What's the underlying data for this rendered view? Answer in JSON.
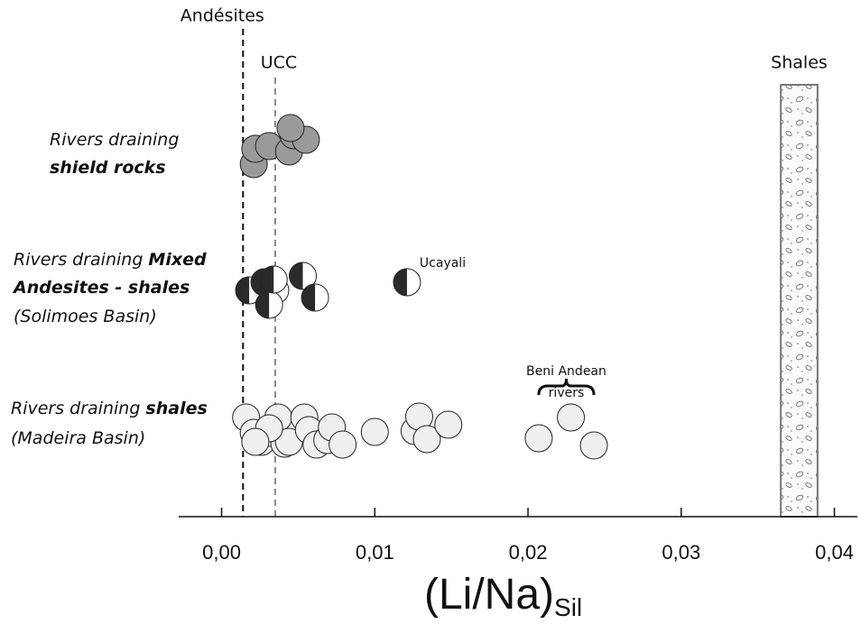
{
  "chart_data": {
    "type": "scatter",
    "xlabel": "(Li/Na)",
    "xlabel_sub": "Sil",
    "xlim": [
      -0.0028,
      0.0415
    ],
    "xticks": [
      {
        "value": 0,
        "label": "0,00"
      },
      {
        "value": 0.01,
        "label": "0,01"
      },
      {
        "value": 0.02,
        "label": "0,02"
      },
      {
        "value": 0.03,
        "label": "0,03"
      },
      {
        "value": 0.04,
        "label": "0,04"
      }
    ],
    "series": [
      {
        "label_lines": [
          [
            {
              "text": "Rivers draining",
              "bold": false
            }
          ],
          [
            {
              "text": "shield  rocks",
              "bold": true
            }
          ]
        ],
        "marker": "filled",
        "color": "#9a9a9a",
        "x": [
          0.0021,
          0.0022,
          0.0031,
          0.0044,
          0.0047,
          0.0055,
          0.0045
        ]
      },
      {
        "label_lines": [
          [
            {
              "text": "Rivers draining ",
              "bold": false
            },
            {
              "text": "Mixed",
              "bold": true
            }
          ],
          [
            {
              "text": "Andesites - shales",
              "bold": true
            }
          ],
          [
            {
              "text": "(Solimoes Basin)",
              "bold": false
            }
          ]
        ],
        "marker": "half",
        "color": "#2a2a2a",
        "x": [
          0.0018,
          0.0028,
          0.0035,
          0.0031,
          0.0034,
          0.0053,
          0.0061,
          0.0121
        ]
      },
      {
        "label_lines": [
          [
            {
              "text": "Rivers draining ",
              "bold": false
            },
            {
              "text": "shales",
              "bold": true
            }
          ],
          [
            {
              "text": "(Madeira Basin)",
              "bold": false
            }
          ]
        ],
        "marker": "filled",
        "color": "#efefef",
        "x": [
          0.0016,
          0.0021,
          0.0026,
          0.0032,
          0.0037,
          0.0041,
          0.0044,
          0.0054,
          0.0057,
          0.0062,
          0.0069,
          0.0072,
          0.0079,
          0.01,
          0.0126,
          0.0129,
          0.0134,
          0.0148,
          0.0207,
          0.0228,
          0.0243,
          0.0031,
          0.0022
        ]
      }
    ],
    "reference_lines": [
      {
        "label": "Andésites",
        "x": 0.0014,
        "color": "#111"
      },
      {
        "label": "UCC",
        "x": 0.0035,
        "color": "#888"
      }
    ],
    "shales_band": {
      "label": "Shales",
      "x": [
        0.0365,
        0.0389
      ]
    },
    "annotations": [
      {
        "text": "Ucayali",
        "x": 0.0121
      },
      {
        "lines": [
          "Beni Andean",
          "rivers"
        ],
        "x": [
          0.0207,
          0.0243
        ]
      }
    ]
  }
}
